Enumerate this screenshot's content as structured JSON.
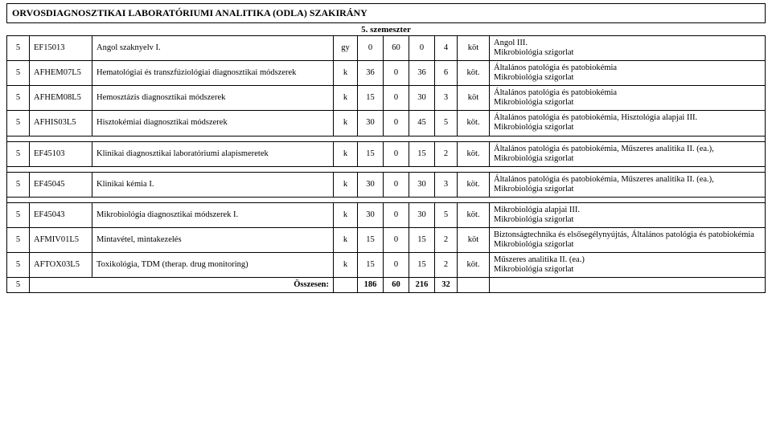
{
  "title": "ORVOSDIAGNOSZTIKAI LABORATÓRIUMI ANALITIKA (ODLA) SZAKIRÁNY",
  "semester_header": "5. szemeszter",
  "rows": [
    {
      "idx": "5",
      "code": "EF15013",
      "name": "Angol szaknyelv I.",
      "type": "gy",
      "n1": "0",
      "n2": "60",
      "n3": "0",
      "n4": "4",
      "req": "köt",
      "note": "Angol III.\nMikrobiológia szigorlat"
    },
    {
      "idx": "5",
      "code": "AFHEM07L5",
      "name": "Hematológiai és transzfúziológiai diagnosztikai módszerek",
      "type": "k",
      "n1": "36",
      "n2": "0",
      "n3": "36",
      "n4": "6",
      "req": "köt.",
      "note": "Általános patológia és patobiokémia\nMikrobiológia szigorlat"
    },
    {
      "idx": "5",
      "code": "AFHEM08L5",
      "name": "Hemosztázis diagnosztikai módszerek",
      "type": "k",
      "n1": "15",
      "n2": "0",
      "n3": "30",
      "n4": "3",
      "req": "köt",
      "note": "Általános patológia és patobiokémia\nMikrobiológia szigorlat"
    },
    {
      "idx": "5",
      "code": "AFHIS03L5",
      "name": "Hisztokémiai diagnosztikai módszerek",
      "type": "k",
      "n1": "30",
      "n2": "0",
      "n3": "45",
      "n4": "5",
      "req": "köt.",
      "note": "Általános patológia és patobiokémia, Hisztológia alapjai III.\nMikrobiológia szigorlat"
    }
  ],
  "row_b": {
    "idx": "5",
    "code": "EF45103",
    "name": "Klinikai diagnosztikai laboratóriumi alapismeretek",
    "type": "k",
    "n1": "15",
    "n2": "0",
    "n3": "15",
    "n4": "2",
    "req": "köt.",
    "note": "Általános patológia és patobiokémia, Műszeres analitika II. (ea.), Mikrobiológia szigorlat"
  },
  "row_c": {
    "idx": "5",
    "code": "EF45045",
    "name": "Klinikai kémia I.",
    "type": "k",
    "n1": "30",
    "n2": "0",
    "n3": "30",
    "n4": "3",
    "req": "köt.",
    "note": "Általános patológia és patobiokémia, Műszeres analitika II. (ea.), Mikrobiológia szigorlat"
  },
  "rows_d": [
    {
      "idx": "5",
      "code": "EF45043",
      "name": "Mikrobiológia diagnosztikai módszerek I.",
      "type": "k",
      "n1": "30",
      "n2": "0",
      "n3": "30",
      "n4": "5",
      "req": "köt.",
      "note": "Mikrobiológia alapjai III.\nMikrobiológia szigorlat"
    },
    {
      "idx": "5",
      "code": "AFMIV01L5",
      "name": "Mintavétel, mintakezelés",
      "type": "k",
      "n1": "15",
      "n2": "0",
      "n3": "15",
      "n4": "2",
      "req": "köt",
      "note": "Biztonságtechnika és elsősegélynyújtás, Általános patológia és patobiokémia\nMikrobiológia szigorlat"
    },
    {
      "idx": "5",
      "code": "AFTOX03L5",
      "name": "Toxikológia, TDM (therap. drug monitoring)",
      "type": "k",
      "n1": "15",
      "n2": "0",
      "n3": "15",
      "n4": "2",
      "req": "köt.",
      "note": "Műszeres analitika II. (ea.)\nMikrobiológia szigorlat"
    }
  ],
  "summary": {
    "label": "Összesen:",
    "n1": "186",
    "n2": "60",
    "n3": "216",
    "n4": "32"
  }
}
